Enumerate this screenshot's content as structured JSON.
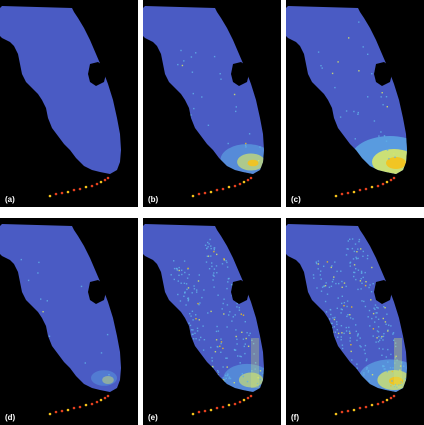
{
  "panels": [
    {
      "label": "(a)",
      "intensity": 0.05,
      "coastal_speckle": 0.0
    },
    {
      "label": "(b)",
      "intensity": 0.55,
      "coastal_speckle": 0.1
    },
    {
      "label": "(c)",
      "intensity": 1.0,
      "coastal_speckle": 0.15
    },
    {
      "label": "(d)",
      "intensity": 0.1,
      "coastal_speckle": 0.05
    },
    {
      "label": "(e)",
      "intensity": 0.45,
      "coastal_speckle": 0.85
    },
    {
      "label": "(f)",
      "intensity": 0.7,
      "coastal_speckle": 1.0
    }
  ],
  "colors": {
    "background": "#000000",
    "land": "#4a5bc4",
    "lake": "#000000",
    "low": "#5fb0e8",
    "mid": "#d7e86a",
    "high": "#f5c21b",
    "keys": "#e5401e"
  }
}
